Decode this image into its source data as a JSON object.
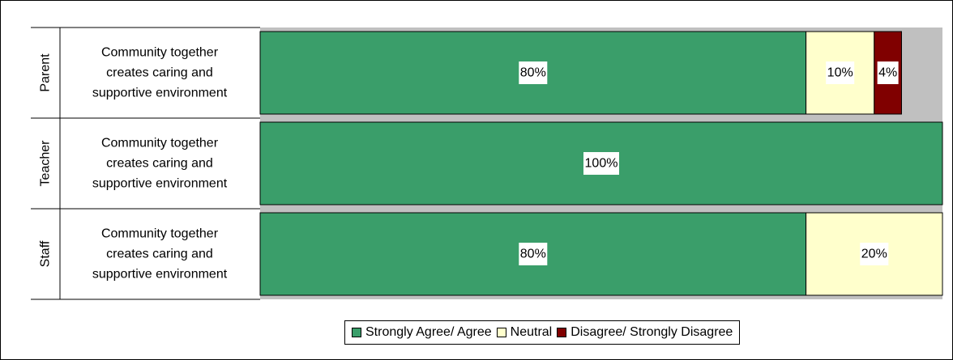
{
  "chart_data": {
    "type": "bar",
    "orientation": "horizontal",
    "stacked": true,
    "percent": true,
    "xlim": [
      0,
      100
    ],
    "groups": [
      "Parent",
      "Teacher",
      "Staff"
    ],
    "categories": [
      "Community together creates caring and supportive environment",
      "Community together creates caring and supportive environment",
      "Community together creates caring and supportive environment"
    ],
    "category_lines": [
      [
        "Community together",
        "creates caring and",
        "supportive environment"
      ],
      [
        "Community together",
        "creates caring and",
        "supportive environment"
      ],
      [
        "Community together",
        "creates caring and",
        "supportive environment"
      ]
    ],
    "series": [
      {
        "name": "Strongly Agree/ Agree",
        "color": "#3a9e6a",
        "values": [
          80,
          100,
          80
        ],
        "labels": [
          "80%",
          "100%",
          "80%"
        ]
      },
      {
        "name": "Neutral",
        "color": "#ffffcc",
        "values": [
          10,
          0,
          20
        ],
        "labels": [
          "10%",
          "",
          "20%"
        ]
      },
      {
        "name": "Disagree/ Strongly Disagree",
        "color": "#800000",
        "values": [
          4,
          0,
          0
        ],
        "labels": [
          "4%",
          "",
          ""
        ]
      }
    ],
    "legend_position": "bottom",
    "grid": false
  }
}
